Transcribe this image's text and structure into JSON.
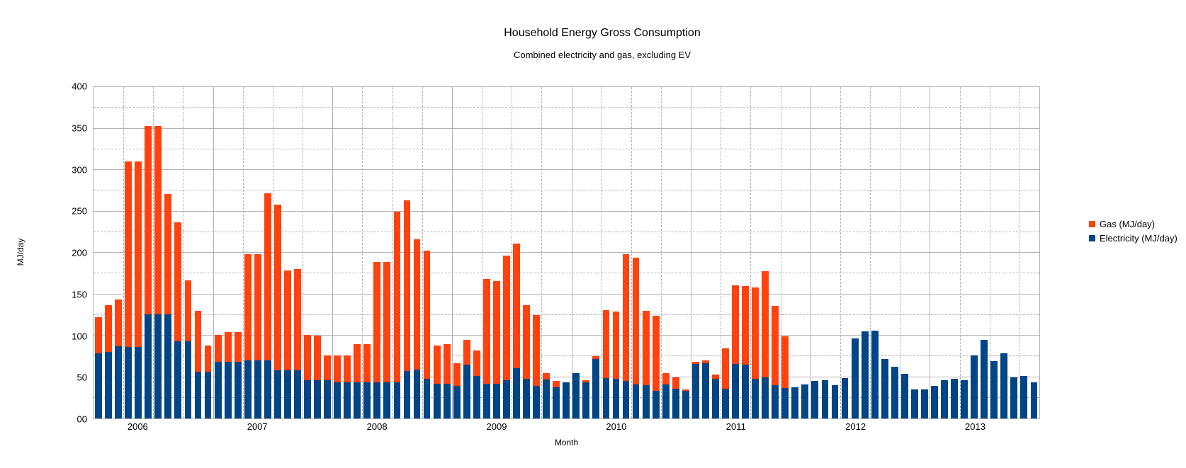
{
  "title": "Household Energy Gross Consumption",
  "subtitle": "Combined electricity and gas, excluding EV",
  "legend": [
    {
      "label": "Gas (MJ/day)",
      "color": "#ff420e"
    },
    {
      "label": "Electricity (MJ/day)",
      "color": "#004586"
    }
  ],
  "colors": {
    "gas": "#ff420e",
    "electricity": "#004586",
    "gridline": "#b3b3b3",
    "background": "#ffffff",
    "text": "#000000"
  },
  "chart_data": {
    "type": "bar",
    "stacked": true,
    "title": "Household Energy Gross Consumption",
    "subtitle": "Combined electricity and gas, excluding EV",
    "xlabel": "Month",
    "ylabel": "MJ/day",
    "ylim": [
      0,
      400
    ],
    "y_major_interval": 50,
    "y_minor_interval": 25,
    "x_major_interval_months": 12,
    "x_minor_interval_months": 3,
    "grid": true,
    "legend_position": "right",
    "y_tick_labels": [
      "00",
      "50",
      "100",
      "150",
      "200",
      "250",
      "300",
      "350",
      "400"
    ],
    "year_labels": [
      {
        "year": "2006",
        "index": 4
      },
      {
        "year": "2007",
        "index": 16
      },
      {
        "year": "2008",
        "index": 28
      },
      {
        "year": "2009",
        "index": 40
      },
      {
        "year": "2010",
        "index": 52
      },
      {
        "year": "2011",
        "index": 64
      },
      {
        "year": "2012",
        "index": 76
      },
      {
        "year": "2013",
        "index": 88
      }
    ],
    "x": [
      "2005-09",
      "2005-10",
      "2005-11",
      "2005-12",
      "2006-01",
      "2006-02",
      "2006-03",
      "2006-04",
      "2006-05",
      "2006-06",
      "2006-07",
      "2006-08",
      "2006-09",
      "2006-10",
      "2006-11",
      "2006-12",
      "2007-01",
      "2007-02",
      "2007-03",
      "2007-04",
      "2007-05",
      "2007-06",
      "2007-07",
      "2007-08",
      "2007-09",
      "2007-10",
      "2007-11",
      "2007-12",
      "2008-01",
      "2008-02",
      "2008-03",
      "2008-04",
      "2008-05",
      "2008-06",
      "2008-07",
      "2008-08",
      "2008-09",
      "2008-10",
      "2008-11",
      "2008-12",
      "2009-01",
      "2009-02",
      "2009-03",
      "2009-04",
      "2009-05",
      "2009-06",
      "2009-07",
      "2009-08",
      "2009-09",
      "2009-10",
      "2009-11",
      "2009-12",
      "2010-01",
      "2010-02",
      "2010-03",
      "2010-04",
      "2010-05",
      "2010-06",
      "2010-07",
      "2010-08",
      "2010-09",
      "2010-10",
      "2010-11",
      "2010-12",
      "2011-01",
      "2011-02",
      "2011-03",
      "2011-04",
      "2011-05",
      "2011-06",
      "2011-07",
      "2011-08",
      "2011-09",
      "2011-10",
      "2011-11",
      "2011-12",
      "2012-01",
      "2012-02",
      "2012-03",
      "2012-04",
      "2012-05",
      "2012-06",
      "2012-07",
      "2012-08",
      "2012-09",
      "2012-10",
      "2012-11",
      "2012-12",
      "2013-01",
      "2013-02",
      "2013-03",
      "2013-04",
      "2013-05",
      "2013-06",
      "2013-07"
    ],
    "series": [
      {
        "name": "Electricity (MJ/day)",
        "color": "#004586",
        "values": [
          79,
          80,
          87,
          86,
          86,
          126,
          126,
          126,
          93,
          93,
          56,
          56,
          68,
          68,
          68,
          70,
          70,
          70,
          58,
          58,
          58,
          46,
          46,
          46,
          44,
          44,
          44,
          44,
          44,
          44,
          44,
          57,
          59,
          48,
          42,
          42,
          39,
          65,
          51,
          42,
          42,
          46,
          61,
          48,
          39,
          47,
          38,
          44,
          55,
          44,
          72,
          49,
          48,
          45,
          41,
          40,
          33,
          41,
          36,
          33,
          66,
          67,
          48,
          36,
          66,
          65,
          48,
          50,
          40,
          37,
          38,
          41,
          45,
          46,
          40,
          49,
          97,
          105,
          106,
          72,
          62,
          54,
          35,
          35,
          39,
          46,
          48,
          46,
          76,
          95,
          69,
          79,
          50,
          51,
          44
        ]
      },
      {
        "name": "Gas (MJ/day)",
        "color": "#ff420e",
        "values": [
          43,
          57,
          57,
          224,
          224,
          227,
          227,
          145,
          144,
          74,
          74,
          32,
          33,
          36,
          36,
          128,
          128,
          202,
          200,
          121,
          122,
          55,
          54,
          30,
          32,
          32,
          46,
          46,
          145,
          145,
          206,
          206,
          157,
          155,
          46,
          48,
          28,
          30,
          31,
          126,
          124,
          151,
          150,
          89,
          86,
          8,
          7,
          0,
          0,
          2,
          3,
          82,
          81,
          153,
          153,
          90,
          91,
          14,
          14,
          2,
          2,
          3,
          5,
          49,
          95,
          95,
          110,
          128,
          96,
          62,
          0,
          0,
          0,
          0,
          0,
          0,
          0,
          0,
          0,
          0,
          0,
          0,
          0,
          0,
          0,
          0,
          0,
          0,
          0,
          0,
          0,
          0,
          0,
          0,
          0
        ]
      }
    ]
  }
}
